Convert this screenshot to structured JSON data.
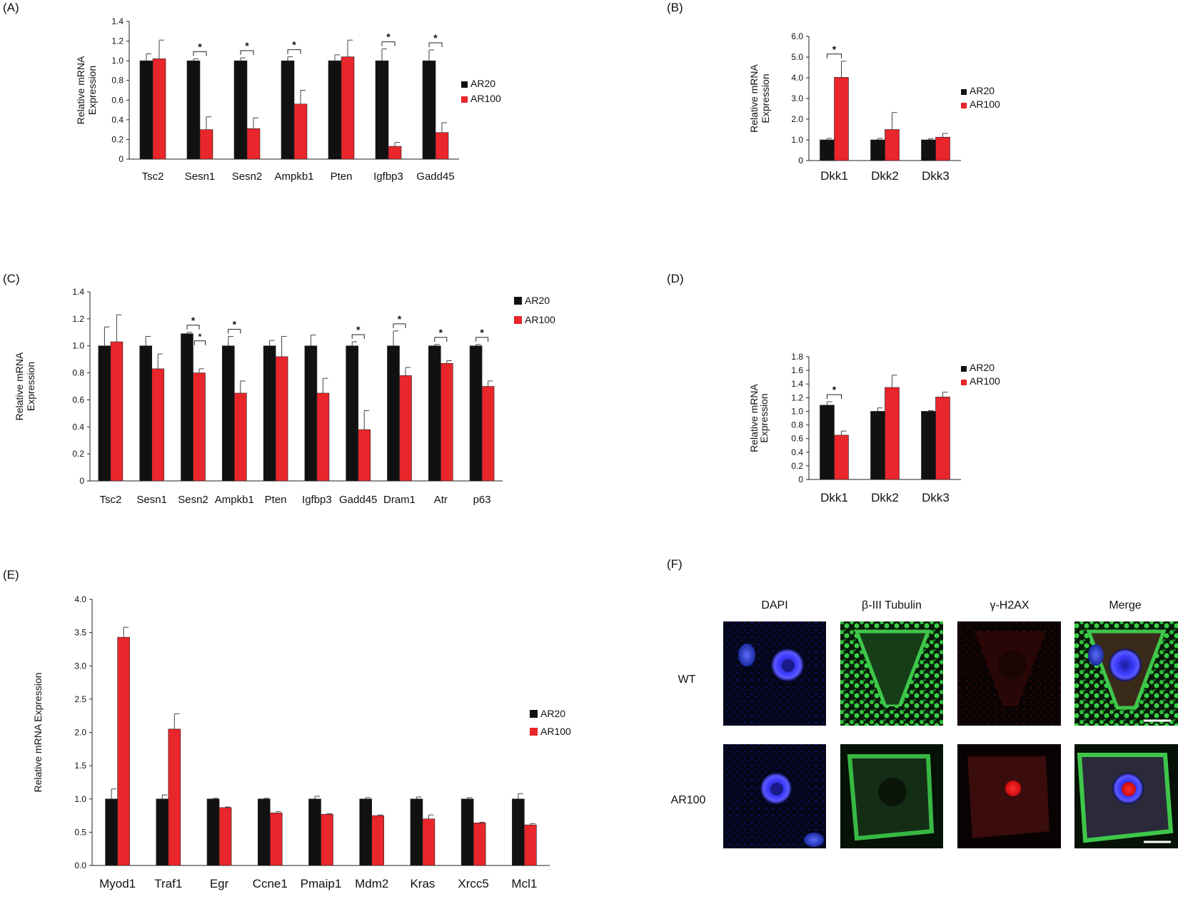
{
  "colors": {
    "ar20": "#111111",
    "ar100": "#e8262b"
  },
  "chart_data": [
    {
      "panel": "(A)",
      "type": "bar",
      "ylabel": "Relative mRNA Expression",
      "ylim": [
        0,
        1.4
      ],
      "yticks": [
        "0",
        "0.2",
        "0.4",
        "0.6",
        "0.8",
        "1.0",
        "1.2",
        "1.4"
      ],
      "categories": [
        "Tsc2",
        "Sesn1",
        "Sesn2",
        "Ampkb1",
        "Pten",
        "Igfbp3",
        "Gadd45"
      ],
      "series": [
        {
          "name": "AR20",
          "values": [
            1.0,
            1.0,
            1.0,
            1.0,
            1.0,
            1.0,
            1.0
          ],
          "errors": [
            0.07,
            0.02,
            0.03,
            0.04,
            0.06,
            0.12,
            0.11
          ]
        },
        {
          "name": "AR100",
          "values": [
            1.02,
            0.3,
            0.31,
            0.56,
            1.04,
            0.13,
            0.27
          ],
          "errors": [
            0.19,
            0.13,
            0.11,
            0.14,
            0.17,
            0.04,
            0.1
          ]
        }
      ],
      "significance": [
        {
          "cat": 1,
          "mark": "*"
        },
        {
          "cat": 2,
          "mark": "*"
        },
        {
          "cat": 3,
          "mark": "*"
        },
        {
          "cat": 5,
          "mark": "*"
        },
        {
          "cat": 6,
          "mark": "*"
        }
      ],
      "legend_position": "right"
    },
    {
      "panel": "(B)",
      "type": "bar",
      "ylabel": "Relative mRNA Expression",
      "ylim": [
        0,
        6.0
      ],
      "yticks": [
        "0",
        "1.0",
        "2.0",
        "3.0",
        "4.0",
        "5.0",
        "6.0"
      ],
      "categories": [
        "Dkk1",
        "Dkk2",
        "Dkk3"
      ],
      "series": [
        {
          "name": "AR20",
          "values": [
            1.0,
            1.0,
            1.0
          ],
          "errors": [
            0.07,
            0.07,
            0.05
          ]
        },
        {
          "name": "AR100",
          "values": [
            4.02,
            1.5,
            1.13
          ],
          "errors": [
            0.78,
            0.82,
            0.18
          ]
        }
      ],
      "significance": [
        {
          "cat": 0,
          "mark": "*"
        }
      ],
      "legend_position": "right"
    },
    {
      "panel": "(C)",
      "type": "bar",
      "ylabel": "Relative mRNA Expression",
      "ylim": [
        0,
        1.4
      ],
      "yticks": [
        "0",
        "0.2",
        "0.4",
        "0.6",
        "0.8",
        "1.0",
        "1.2",
        "1.4"
      ],
      "categories": [
        "Tsc2",
        "Sesn1",
        "Sesn2",
        "Ampkb1",
        "Pten",
        "Igfbp3",
        "Gadd45",
        "Dram1",
        "Atr",
        "p63"
      ],
      "series": [
        {
          "name": "AR20",
          "values": [
            1.0,
            1.0,
            1.09,
            1.0,
            1.0,
            1.0,
            1.0,
            1.0,
            1.0,
            1.0
          ],
          "errors": [
            0.14,
            0.07,
            0.01,
            0.07,
            0.04,
            0.08,
            0.03,
            0.11,
            0.01,
            0.01
          ]
        },
        {
          "name": "AR100",
          "values": [
            1.03,
            0.83,
            0.8,
            0.65,
            0.92,
            0.65,
            0.38,
            0.78,
            0.87,
            0.7
          ],
          "errors": [
            0.2,
            0.11,
            0.03,
            0.09,
            0.15,
            0.11,
            0.14,
            0.06,
            0.02,
            0.04
          ]
        }
      ],
      "significance": [
        {
          "cat": 2,
          "mark": "*"
        },
        {
          "cat": 3,
          "mark": "*"
        },
        {
          "cat": 6,
          "mark": "*"
        },
        {
          "cat": 7,
          "mark": "*"
        },
        {
          "cat": 8,
          "mark": "*"
        },
        {
          "cat": 9,
          "mark": "*"
        }
      ],
      "extra_significance": [
        {
          "cat": 2,
          "mark": "*"
        }
      ],
      "legend_position": "top-right"
    },
    {
      "panel": "(D)",
      "type": "bar",
      "ylabel": "Relative mRNA Expression",
      "ylim": [
        0,
        1.8
      ],
      "yticks": [
        "0",
        "0.2",
        "0.4",
        "0.6",
        "0.8",
        "1.0",
        "1.2",
        "1.4",
        "1.6",
        "1.8"
      ],
      "categories": [
        "Dkk1",
        "Dkk2",
        "Dkk3"
      ],
      "series": [
        {
          "name": "AR20",
          "values": [
            1.09,
            1.0,
            1.0
          ],
          "errors": [
            0.05,
            0.05,
            0.01
          ]
        },
        {
          "name": "AR100",
          "values": [
            0.65,
            1.35,
            1.21
          ],
          "errors": [
            0.06,
            0.18,
            0.07
          ]
        }
      ],
      "significance": [
        {
          "cat": 0,
          "mark": "*"
        }
      ],
      "legend_position": "right"
    },
    {
      "panel": "(E)",
      "type": "bar",
      "ylabel": "Relative mRNA Expression",
      "ylim": [
        0,
        4.0
      ],
      "yticks": [
        "0.0",
        "0.5",
        "1.0",
        "1.5",
        "2.0",
        "2.5",
        "3.0",
        "3.5",
        "4.0"
      ],
      "categories": [
        "Myod1",
        "Traf1",
        "Egr",
        "Ccne1",
        "Pmaip1",
        "Mdm2",
        "Kras",
        "Xrcc5",
        "Mcl1"
      ],
      "series": [
        {
          "name": "AR20",
          "values": [
            1.0,
            1.0,
            1.0,
            1.0,
            1.0,
            1.0,
            1.0,
            1.0,
            1.0
          ],
          "errors": [
            0.15,
            0.06,
            0.01,
            0.01,
            0.04,
            0.02,
            0.03,
            0.02,
            0.08
          ]
        },
        {
          "name": "AR100",
          "values": [
            3.43,
            2.05,
            0.87,
            0.79,
            0.77,
            0.75,
            0.7,
            0.64,
            0.61
          ],
          "errors": [
            0.15,
            0.23,
            0.01,
            0.02,
            0.01,
            0.01,
            0.06,
            0.01,
            0.02
          ]
        }
      ],
      "significance": [],
      "legend_position": "right"
    }
  ],
  "figure_f": {
    "panel": "(F)",
    "columns": [
      "DAPI",
      "β-III Tubulin",
      "γ-H2AX",
      "Merge"
    ],
    "rows": [
      "WT",
      "AR100"
    ]
  }
}
